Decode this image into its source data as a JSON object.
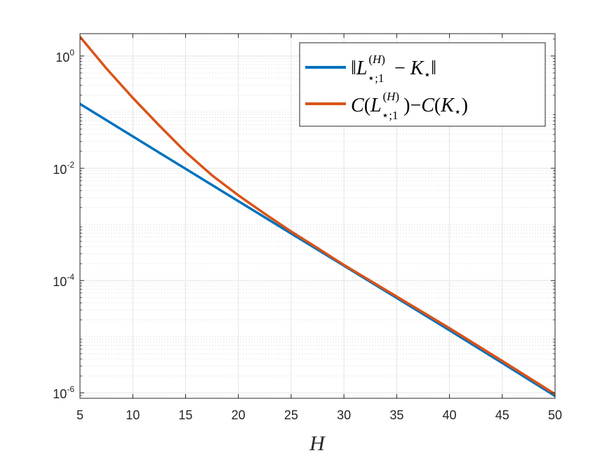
{
  "chart_data": {
    "type": "line",
    "xlabel": "H",
    "ylabel": "",
    "xlim": [
      5,
      50
    ],
    "ylim": [
      8e-07,
      2.5
    ],
    "yscale": "log",
    "grid": true,
    "minor_grid": true,
    "legend_location": "top-right",
    "x_ticks": [
      5,
      10,
      15,
      20,
      25,
      30,
      35,
      40,
      45,
      50
    ],
    "y_ticks": [
      {
        "value": 1,
        "base": "10",
        "exp": "0"
      },
      {
        "value": 0.01,
        "base": "10",
        "exp": "-2"
      },
      {
        "value": 0.0001,
        "base": "10",
        "exp": "-4"
      },
      {
        "value": 1e-06,
        "base": "10",
        "exp": "-6"
      }
    ],
    "series": [
      {
        "name": "‖L⋆;1^(H) − K⋆‖",
        "color": "#0072BD",
        "x": [
          5,
          10,
          15,
          20,
          25,
          30,
          35,
          40,
          45,
          50
        ],
        "y": [
          0.14,
          0.037,
          0.0098,
          0.0026,
          0.00069,
          0.000184,
          4.9e-05,
          1.3e-05,
          3.4e-06,
          8.8e-07
        ]
      },
      {
        "name": "C(L⋆;1^(H))−C(K⋆)",
        "color": "#D95319",
        "x": [
          5,
          7.5,
          10,
          12.5,
          15,
          17.5,
          20,
          22.5,
          25,
          27.5,
          30,
          35,
          40,
          45,
          50
        ],
        "y": [
          2.2,
          0.6,
          0.18,
          0.058,
          0.0195,
          0.0075,
          0.0033,
          0.00155,
          0.00075,
          0.00038,
          0.00019,
          5.2e-05,
          1.42e-05,
          3.7e-06,
          9.5e-07
        ]
      }
    ]
  }
}
